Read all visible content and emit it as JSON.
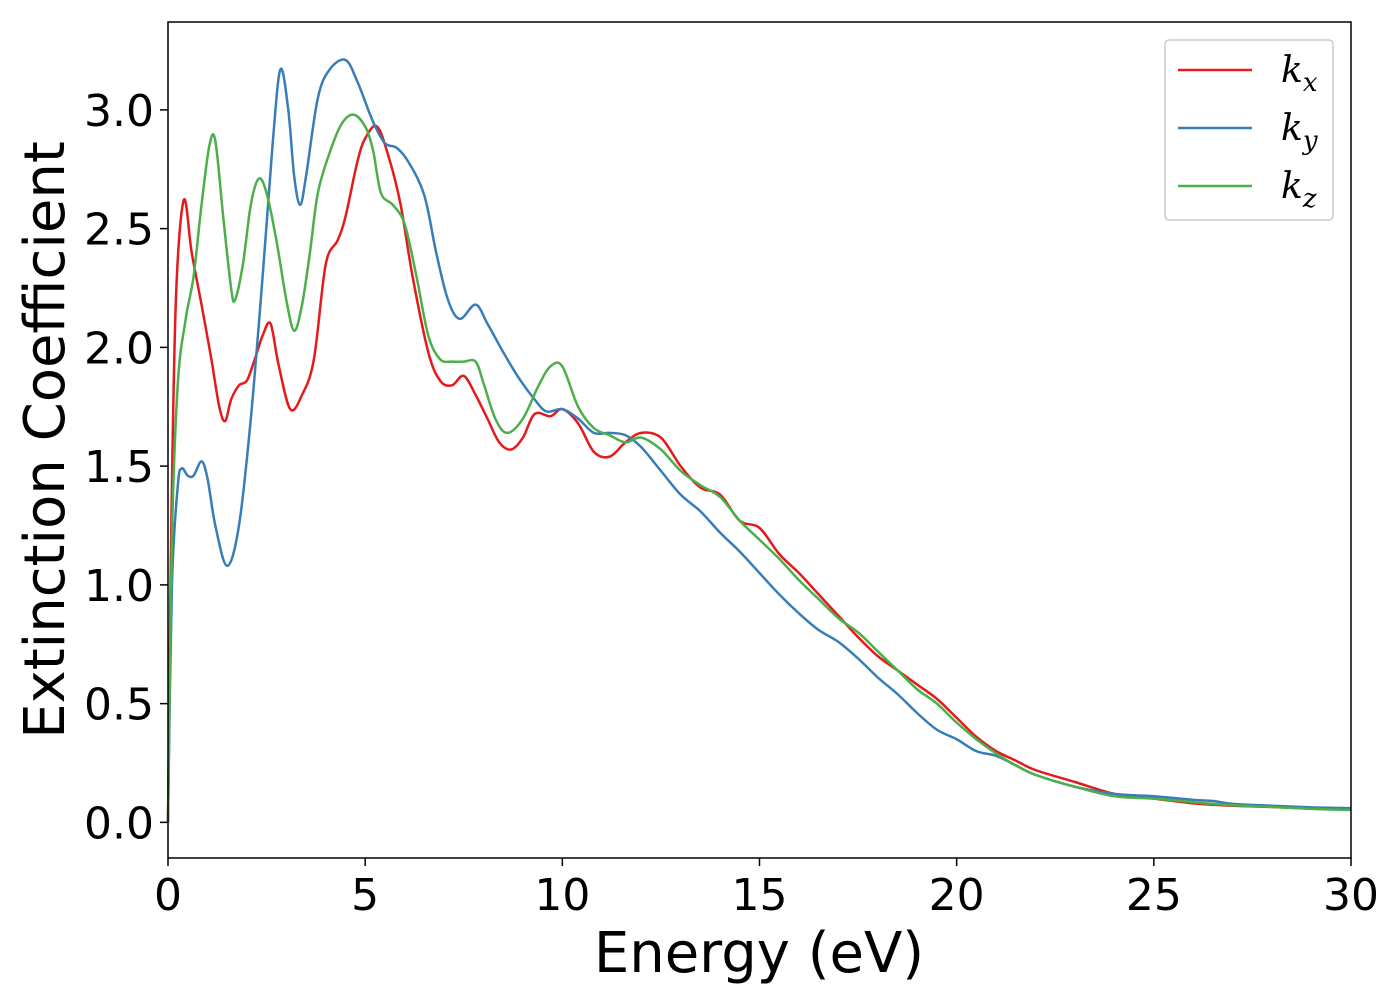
{
  "chart_data": {
    "type": "line",
    "xlabel": "Energy (eV)",
    "ylabel": "Extinction Coefficient",
    "xlim": [
      0,
      30
    ],
    "ylim": [
      -0.15,
      3.37
    ],
    "xticks": [
      0,
      5,
      10,
      15,
      20,
      25,
      30
    ],
    "xtick_labels": [
      "0",
      "5",
      "10",
      "15",
      "20",
      "25",
      "30"
    ],
    "yticks": [
      0.0,
      0.5,
      1.0,
      1.5,
      2.0,
      2.5,
      3.0
    ],
    "ytick_labels": [
      "0.0",
      "0.5",
      "1.0",
      "1.5",
      "2.0",
      "2.5",
      "3.0"
    ],
    "grid": false,
    "legend_position": "top-right",
    "series": [
      {
        "name": "kx",
        "name_base": "k",
        "name_sub": "x",
        "color": "#e41a1c",
        "points": [
          [
            0,
            0
          ],
          [
            0.08,
            1.2
          ],
          [
            0.2,
            2.2
          ],
          [
            0.4,
            2.62
          ],
          [
            0.6,
            2.4
          ],
          [
            0.85,
            2.18
          ],
          [
            1.1,
            1.95
          ],
          [
            1.3,
            1.75
          ],
          [
            1.45,
            1.69
          ],
          [
            1.6,
            1.78
          ],
          [
            1.8,
            1.84
          ],
          [
            2.0,
            1.86
          ],
          [
            2.2,
            1.95
          ],
          [
            2.4,
            2.05
          ],
          [
            2.6,
            2.1
          ],
          [
            2.8,
            1.93
          ],
          [
            3.1,
            1.74
          ],
          [
            3.4,
            1.8
          ],
          [
            3.7,
            1.95
          ],
          [
            4.0,
            2.35
          ],
          [
            4.3,
            2.45
          ],
          [
            4.5,
            2.55
          ],
          [
            4.8,
            2.78
          ],
          [
            5.0,
            2.88
          ],
          [
            5.3,
            2.93
          ],
          [
            5.6,
            2.8
          ],
          [
            5.9,
            2.6
          ],
          [
            6.2,
            2.3
          ],
          [
            6.6,
            1.98
          ],
          [
            6.9,
            1.86
          ],
          [
            7.2,
            1.84
          ],
          [
            7.5,
            1.88
          ],
          [
            7.8,
            1.8
          ],
          [
            8.1,
            1.7
          ],
          [
            8.4,
            1.6
          ],
          [
            8.7,
            1.57
          ],
          [
            9.0,
            1.62
          ],
          [
            9.3,
            1.72
          ],
          [
            9.7,
            1.71
          ],
          [
            10.0,
            1.74
          ],
          [
            10.4,
            1.68
          ],
          [
            10.8,
            1.56
          ],
          [
            11.2,
            1.54
          ],
          [
            11.6,
            1.6
          ],
          [
            12.0,
            1.64
          ],
          [
            12.5,
            1.62
          ],
          [
            13.0,
            1.5
          ],
          [
            13.5,
            1.41
          ],
          [
            14.0,
            1.38
          ],
          [
            14.5,
            1.27
          ],
          [
            15.0,
            1.24
          ],
          [
            15.5,
            1.13
          ],
          [
            16.0,
            1.05
          ],
          [
            16.5,
            0.96
          ],
          [
            17.0,
            0.87
          ],
          [
            17.5,
            0.78
          ],
          [
            18.0,
            0.7
          ],
          [
            18.5,
            0.64
          ],
          [
            19.0,
            0.58
          ],
          [
            19.5,
            0.52
          ],
          [
            20.0,
            0.44
          ],
          [
            20.5,
            0.36
          ],
          [
            21.0,
            0.3
          ],
          [
            21.5,
            0.26
          ],
          [
            22.0,
            0.22
          ],
          [
            23.0,
            0.17
          ],
          [
            24.0,
            0.12
          ],
          [
            25.0,
            0.1
          ],
          [
            26.0,
            0.08
          ],
          [
            27.0,
            0.07
          ],
          [
            28.0,
            0.065
          ],
          [
            29.0,
            0.058
          ],
          [
            30.0,
            0.055
          ]
        ]
      },
      {
        "name": "ky",
        "name_base": "k",
        "name_sub": "y",
        "color": "#377eb8",
        "points": [
          [
            0,
            0
          ],
          [
            0.1,
            1.0
          ],
          [
            0.25,
            1.42
          ],
          [
            0.35,
            1.49
          ],
          [
            0.5,
            1.46
          ],
          [
            0.65,
            1.46
          ],
          [
            0.85,
            1.52
          ],
          [
            1.0,
            1.45
          ],
          [
            1.2,
            1.25
          ],
          [
            1.5,
            1.08
          ],
          [
            1.8,
            1.25
          ],
          [
            2.1,
            1.7
          ],
          [
            2.4,
            2.3
          ],
          [
            2.65,
            2.85
          ],
          [
            2.85,
            3.17
          ],
          [
            3.05,
            3.0
          ],
          [
            3.2,
            2.72
          ],
          [
            3.35,
            2.6
          ],
          [
            3.5,
            2.72
          ],
          [
            3.8,
            3.05
          ],
          [
            4.1,
            3.17
          ],
          [
            4.5,
            3.21
          ],
          [
            4.8,
            3.12
          ],
          [
            5.2,
            2.95
          ],
          [
            5.5,
            2.86
          ],
          [
            5.8,
            2.84
          ],
          [
            6.1,
            2.78
          ],
          [
            6.5,
            2.64
          ],
          [
            6.8,
            2.4
          ],
          [
            7.1,
            2.2
          ],
          [
            7.4,
            2.12
          ],
          [
            7.8,
            2.18
          ],
          [
            8.1,
            2.1
          ],
          [
            8.5,
            1.98
          ],
          [
            8.9,
            1.87
          ],
          [
            9.3,
            1.78
          ],
          [
            9.6,
            1.73
          ],
          [
            10.0,
            1.74
          ],
          [
            10.4,
            1.7
          ],
          [
            10.8,
            1.64
          ],
          [
            11.2,
            1.64
          ],
          [
            11.6,
            1.63
          ],
          [
            12.0,
            1.58
          ],
          [
            12.5,
            1.48
          ],
          [
            13.0,
            1.38
          ],
          [
            13.5,
            1.31
          ],
          [
            14.0,
            1.22
          ],
          [
            14.5,
            1.14
          ],
          [
            15.0,
            1.05
          ],
          [
            15.5,
            0.96
          ],
          [
            16.0,
            0.88
          ],
          [
            16.5,
            0.81
          ],
          [
            17.0,
            0.76
          ],
          [
            17.5,
            0.69
          ],
          [
            18.0,
            0.61
          ],
          [
            18.5,
            0.54
          ],
          [
            19.0,
            0.46
          ],
          [
            19.5,
            0.39
          ],
          [
            20.0,
            0.35
          ],
          [
            20.5,
            0.3
          ],
          [
            21.0,
            0.28
          ],
          [
            21.5,
            0.24
          ],
          [
            22.0,
            0.2
          ],
          [
            23.0,
            0.15
          ],
          [
            24.0,
            0.12
          ],
          [
            25.0,
            0.11
          ],
          [
            26.0,
            0.095
          ],
          [
            26.5,
            0.09
          ],
          [
            27.0,
            0.078
          ],
          [
            28.0,
            0.07
          ],
          [
            29.0,
            0.063
          ],
          [
            30.0,
            0.06
          ]
        ]
      },
      {
        "name": "kz",
        "name_base": "k",
        "name_sub": "z",
        "color": "#4daf4a",
        "points": [
          [
            0,
            0
          ],
          [
            0.1,
            1.2
          ],
          [
            0.25,
            1.85
          ],
          [
            0.45,
            2.12
          ],
          [
            0.65,
            2.3
          ],
          [
            0.85,
            2.6
          ],
          [
            1.05,
            2.85
          ],
          [
            1.2,
            2.87
          ],
          [
            1.4,
            2.55
          ],
          [
            1.6,
            2.25
          ],
          [
            1.7,
            2.2
          ],
          [
            1.9,
            2.35
          ],
          [
            2.1,
            2.6
          ],
          [
            2.3,
            2.71
          ],
          [
            2.5,
            2.65
          ],
          [
            2.75,
            2.45
          ],
          [
            3.0,
            2.2
          ],
          [
            3.2,
            2.07
          ],
          [
            3.4,
            2.18
          ],
          [
            3.6,
            2.4
          ],
          [
            3.8,
            2.65
          ],
          [
            4.1,
            2.82
          ],
          [
            4.4,
            2.94
          ],
          [
            4.7,
            2.98
          ],
          [
            5.0,
            2.93
          ],
          [
            5.2,
            2.83
          ],
          [
            5.4,
            2.65
          ],
          [
            5.7,
            2.6
          ],
          [
            6.0,
            2.52
          ],
          [
            6.3,
            2.3
          ],
          [
            6.6,
            2.05
          ],
          [
            6.9,
            1.95
          ],
          [
            7.2,
            1.94
          ],
          [
            7.5,
            1.94
          ],
          [
            7.8,
            1.94
          ],
          [
            8.0,
            1.85
          ],
          [
            8.3,
            1.7
          ],
          [
            8.6,
            1.64
          ],
          [
            9.0,
            1.7
          ],
          [
            9.4,
            1.84
          ],
          [
            9.7,
            1.92
          ],
          [
            10.0,
            1.92
          ],
          [
            10.4,
            1.75
          ],
          [
            10.8,
            1.66
          ],
          [
            11.2,
            1.63
          ],
          [
            11.6,
            1.6
          ],
          [
            12.0,
            1.62
          ],
          [
            12.5,
            1.57
          ],
          [
            13.0,
            1.48
          ],
          [
            13.5,
            1.42
          ],
          [
            14.0,
            1.37
          ],
          [
            14.5,
            1.27
          ],
          [
            15.0,
            1.19
          ],
          [
            15.5,
            1.11
          ],
          [
            16.0,
            1.02
          ],
          [
            16.5,
            0.94
          ],
          [
            17.0,
            0.86
          ],
          [
            17.5,
            0.8
          ],
          [
            18.0,
            0.72
          ],
          [
            18.5,
            0.64
          ],
          [
            19.0,
            0.56
          ],
          [
            19.5,
            0.5
          ],
          [
            20.0,
            0.42
          ],
          [
            20.5,
            0.35
          ],
          [
            21.0,
            0.29
          ],
          [
            21.5,
            0.24
          ],
          [
            22.0,
            0.2
          ],
          [
            23.0,
            0.15
          ],
          [
            24.0,
            0.11
          ],
          [
            25.0,
            0.1
          ],
          [
            26.0,
            0.085
          ],
          [
            27.0,
            0.072
          ],
          [
            28.0,
            0.065
          ],
          [
            29.0,
            0.057
          ],
          [
            30.0,
            0.052
          ]
        ]
      }
    ]
  }
}
